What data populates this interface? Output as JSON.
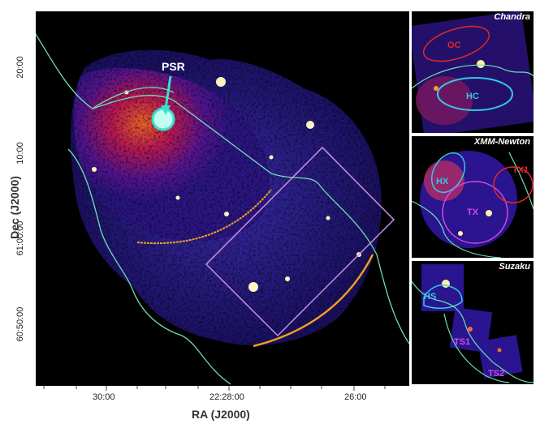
{
  "axes": {
    "xlabel": "RA (J2000)",
    "ylabel": "Dec (J2000)",
    "xticks": [
      "30:00",
      "22:28:00",
      "26:00"
    ],
    "yticks": [
      "20:00",
      "10:00",
      "61:00:00",
      "60:50:00"
    ]
  },
  "main": {
    "psr_label": "PSR"
  },
  "insets": [
    {
      "title": "Chandra",
      "regions": [
        {
          "label": "OC",
          "color": "#e02828"
        },
        {
          "label": "HC",
          "color": "#35c9e6"
        }
      ]
    },
    {
      "title": "XMM-Newton",
      "regions": [
        {
          "label": "HX",
          "color": "#35c9e6"
        },
        {
          "label": "TX",
          "color": "#d24adf"
        },
        {
          "label": "TX1",
          "color": "#e02828"
        }
      ]
    },
    {
      "title": "Suzaku",
      "regions": [
        {
          "label": "HS",
          "color": "#35c9e6"
        },
        {
          "label": "TS1",
          "color": "#d24adf"
        },
        {
          "label": "TS2",
          "color": "#d24adf"
        }
      ]
    }
  ],
  "colors": {
    "contour": "#6ee0b0",
    "arc": "#f0a020",
    "box": "#c890e0",
    "psr_circle": "#35e0d0"
  }
}
